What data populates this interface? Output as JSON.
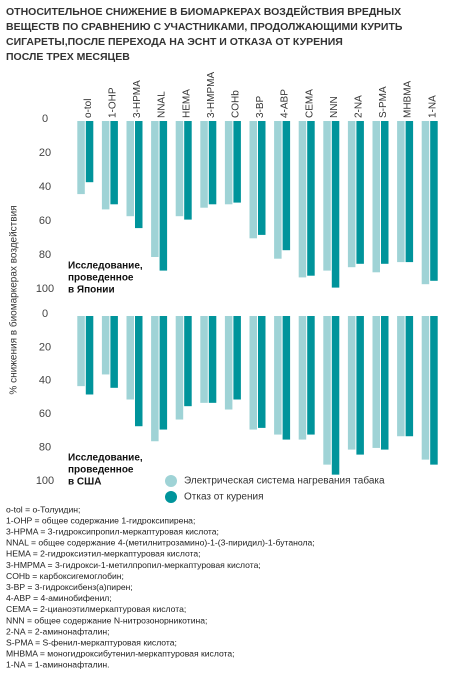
{
  "title": [
    "ОТНОСИТЕЛЬНОЕ СНИЖЕНИЕ В БИОМАРКЕРАХ ВОЗДЕЙСТВИЯ ВРЕДНЫХ",
    "ВЕЩЕСТВ ПО СРАВНЕНИЮ С УЧАСТНИКАМИ, ПРОДОЛЖАЮЩИМИ КУРИТЬ",
    "СИГАРЕТЫ,ПОСЛЕ ПЕРЕХОДА НА ЭСНТ И ОТКАЗА ОТ КУРЕНИЯ",
    "ПОСЛЕ ТРЕХ МЕСЯЦЕВ"
  ],
  "y_axis_label": "% снижения в биомаркерах воздействия",
  "chart_data": [
    {
      "type": "bar",
      "y_inverted": true,
      "ylim": [
        0,
        100
      ],
      "yticks": [
        0,
        20,
        40,
        60,
        80,
        100
      ],
      "annotation": [
        "Исследование,",
        "проведенное",
        "в Японии"
      ],
      "categories": [
        "o-tol",
        "1-OHP",
        "3-HPMA",
        "NNAL",
        "HEMA",
        "3-HMPMA",
        "COHb",
        "3-BP",
        "4-ABP",
        "CEMA",
        "NNN",
        "2-NA",
        "S-PMA",
        "MHBMA",
        "1-NA"
      ],
      "series": [
        {
          "name": "Электрическая система нагревания табака",
          "color": "#9fd3d6",
          "values": [
            43,
            52,
            56,
            80,
            56,
            51,
            49,
            69,
            81,
            92,
            88,
            86,
            89,
            83,
            96
          ]
        },
        {
          "name": "Отказ от курения",
          "color": "#00949b",
          "values": [
            36,
            49,
            63,
            88,
            58,
            49,
            48,
            67,
            76,
            91,
            98,
            84,
            84,
            83,
            94
          ]
        }
      ]
    },
    {
      "type": "bar",
      "y_inverted": true,
      "ylim": [
        0,
        100
      ],
      "yticks": [
        0,
        20,
        40,
        60,
        80,
        100
      ],
      "annotation": [
        "Исследование,",
        "проведенное",
        "в США"
      ],
      "series": [
        {
          "name": "Электрическая система нагревания табака",
          "color": "#9fd3d6",
          "values": [
            42,
            35,
            50,
            75,
            62,
            52,
            56,
            68,
            71,
            74,
            89,
            80,
            79,
            72,
            86
          ]
        },
        {
          "name": "Отказ от курения",
          "color": "#00949b",
          "values": [
            47,
            43,
            66,
            68,
            54,
            52,
            50,
            67,
            74,
            71,
            95,
            83,
            80,
            72,
            89
          ]
        }
      ]
    }
  ],
  "notes": [
    "o-tol = o-Толуидин;",
    "1-OHP = общее содержание 1-гидроксипирена;",
    "3-HPMA = 3-гидроксипропил-меркаптуровая кислота;",
    "NNAL = общее содержание 4-(метилнитрозамино)-1-(3-пиридил)-1-бутанола;",
    "HEMA = 2-гидроксиэтил-меркаптуровая кислота;",
    "3-HMPMA = 3-гидрокси-1-метилпропил-меркаптуровая кислота;",
    "COHb = карбоксигемоглобин;",
    "3-BP = 3-гидроксибенз(а)пирен;",
    "4-ABP = 4-аминобифенил;",
    "CEMA = 2-цианоэтилмеркаптуровая кислота;",
    "NNN = общее содержание N-нитрозонорникотина;",
    "2-NA = 2-аминонафталин;",
    "S-PMA = S-фенил-меркаптуровая кислота;",
    "MHBMA = моногидроксибутенил-меркаптуровая кислота;",
    "1-NA = 1-аминонафталин."
  ]
}
